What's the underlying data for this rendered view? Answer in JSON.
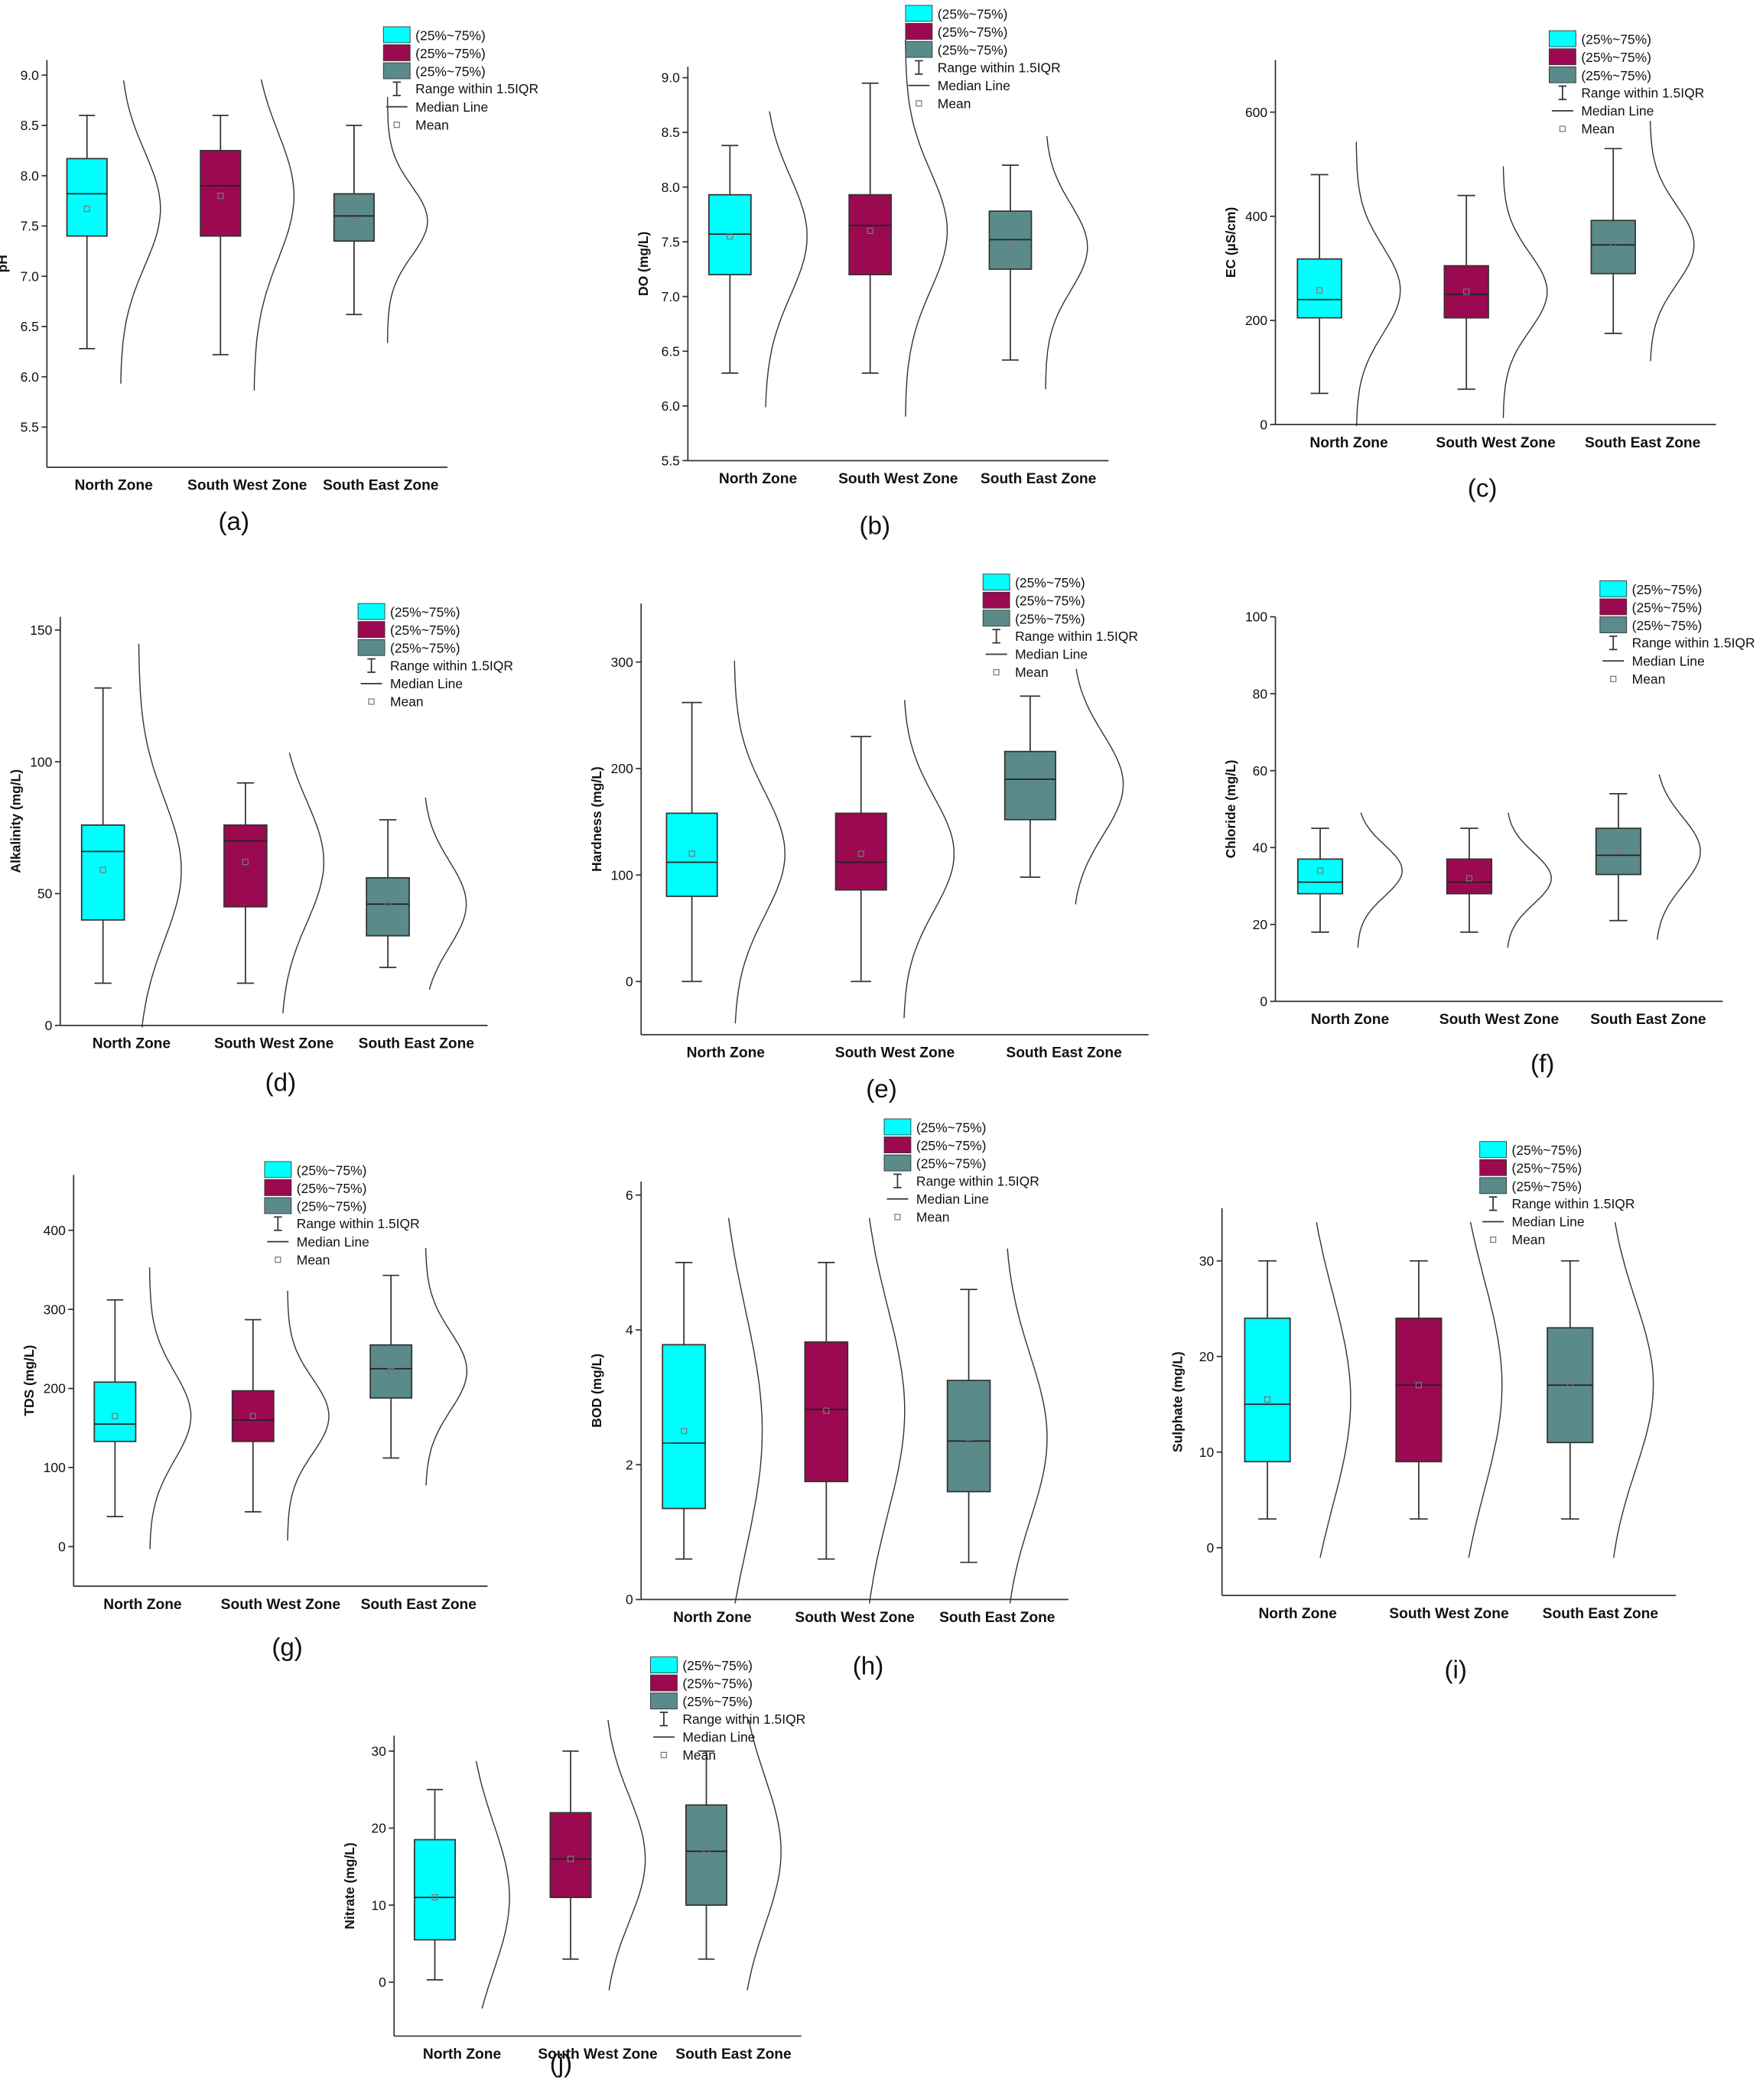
{
  "chart_data": [
    {
      "type": "box",
      "caption": "(a)",
      "y_label": "pH",
      "categories": [
        "North Zone",
        "South West Zone",
        "South East Zone"
      ],
      "ylim": [
        5.1,
        9.15
      ],
      "yticks": [
        {
          "value": 5.5,
          "label": "5.5"
        },
        {
          "value": 6,
          "label": "6.0"
        },
        {
          "value": 6.5,
          "label": "6.5"
        },
        {
          "value": 7,
          "label": "7.0"
        },
        {
          "value": 7.5,
          "label": "7.5"
        },
        {
          "value": 8,
          "label": "8.0"
        },
        {
          "value": 8.5,
          "label": "8.5"
        },
        {
          "value": 9,
          "label": "9.0"
        }
      ],
      "boxes": [
        {
          "name": "(25%~75%)",
          "color": "#00ffff",
          "low": 6.28,
          "q1": 7.4,
          "median": 7.82,
          "q3": 8.17,
          "high": 8.6,
          "mean": 7.67
        },
        {
          "name": "(25%~75%)",
          "color": "#9b0a50",
          "low": 6.22,
          "q1": 7.4,
          "median": 7.9,
          "q3": 8.25,
          "high": 8.6,
          "mean": 7.8
        },
        {
          "name": "(25%~75%)",
          "color": "#5b8a8a",
          "low": 6.62,
          "q1": 7.35,
          "median": 7.6,
          "q3": 7.82,
          "high": 8.5,
          "mean": 7.55
        }
      ],
      "legend_extra": [
        "Range within 1.5IQR",
        "Median Line",
        "Mean"
      ]
    },
    {
      "type": "box",
      "caption": "(b)",
      "y_label": "DO (mg/L)",
      "categories": [
        "North Zone",
        "South West Zone",
        "South East Zone"
      ],
      "ylim": [
        5.5,
        9.1
      ],
      "yticks": [
        {
          "value": 5.5,
          "label": "5.5"
        },
        {
          "value": 6,
          "label": "6.0"
        },
        {
          "value": 6.5,
          "label": "6.5"
        },
        {
          "value": 7,
          "label": "7.0"
        },
        {
          "value": 7.5,
          "label": "7.5"
        },
        {
          "value": 8,
          "label": "8.0"
        },
        {
          "value": 8.5,
          "label": "8.5"
        },
        {
          "value": 9,
          "label": "9.0"
        }
      ],
      "boxes": [
        {
          "name": "(25%~75%)",
          "color": "#00ffff",
          "low": 6.3,
          "q1": 7.2,
          "median": 7.57,
          "q3": 7.93,
          "high": 8.38,
          "mean": 7.55
        },
        {
          "name": "(25%~75%)",
          "color": "#9b0a50",
          "low": 6.3,
          "q1": 7.2,
          "median": 7.65,
          "q3": 7.93,
          "high": 8.95,
          "mean": 7.6
        },
        {
          "name": "(25%~75%)",
          "color": "#5b8a8a",
          "low": 6.42,
          "q1": 7.25,
          "median": 7.52,
          "q3": 7.78,
          "high": 8.2,
          "mean": 7.45
        }
      ],
      "legend_extra": [
        "Range within 1.5IQR",
        "Median Line",
        "Mean"
      ]
    },
    {
      "type": "box",
      "caption": "(c)",
      "y_label": "EC (µS/cm)",
      "categories": [
        "North Zone",
        "South West Zone",
        "South East Zone"
      ],
      "ylim": [
        0,
        700
      ],
      "yticks": [
        0,
        200,
        400,
        600
      ],
      "boxes": [
        {
          "name": "(25%~75%)",
          "color": "#00ffff",
          "low": 60,
          "q1": 205,
          "median": 240,
          "q3": 318,
          "high": 480,
          "mean": 258
        },
        {
          "name": "(25%~75%)",
          "color": "#9b0a50",
          "low": 68,
          "q1": 205,
          "median": 250,
          "q3": 305,
          "high": 440,
          "mean": 255
        },
        {
          "name": "(25%~75%)",
          "color": "#5b8a8a",
          "low": 175,
          "q1": 290,
          "median": 345,
          "q3": 392,
          "high": 530,
          "mean": 345
        }
      ],
      "legend_extra": [
        "Range within 1.5IQR",
        "Median Line",
        "Mean"
      ]
    },
    {
      "type": "box",
      "caption": "(d)",
      "y_label": "Alkalinity (mg/L)",
      "categories": [
        "North Zone",
        "South West Zone",
        "South East Zone"
      ],
      "ylim": [
        0,
        155
      ],
      "yticks": [
        0,
        50,
        100,
        150
      ],
      "boxes": [
        {
          "name": "(25%~75%)",
          "color": "#00ffff",
          "low": 16,
          "q1": 40,
          "median": 66,
          "q3": 76,
          "high": 128,
          "mean": 59
        },
        {
          "name": "(25%~75%)",
          "color": "#9b0a50",
          "low": 16,
          "q1": 45,
          "median": 70,
          "q3": 76,
          "high": 92,
          "mean": 62
        },
        {
          "name": "(25%~75%)",
          "color": "#5b8a8a",
          "low": 22,
          "q1": 34,
          "median": 46,
          "q3": 56,
          "high": 78,
          "mean": 46
        }
      ],
      "legend_extra": [
        "Range within 1.5IQR",
        "Median Line",
        "Mean"
      ]
    },
    {
      "type": "box",
      "caption": "(e)",
      "y_label": "Hardness (mg/L)",
      "categories": [
        "North Zone",
        "South West Zone",
        "South East Zone"
      ],
      "ylim": [
        -50,
        355
      ],
      "yticks": [
        0,
        100,
        200,
        300
      ],
      "boxes": [
        {
          "name": "(25%~75%)",
          "color": "#00ffff",
          "low": 0,
          "q1": 80,
          "median": 112,
          "q3": 158,
          "high": 262,
          "mean": 120
        },
        {
          "name": "(25%~75%)",
          "color": "#9b0a50",
          "low": 0,
          "q1": 86,
          "median": 112,
          "q3": 158,
          "high": 230,
          "mean": 120
        },
        {
          "name": "(25%~75%)",
          "color": "#5b8a8a",
          "low": 98,
          "q1": 152,
          "median": 190,
          "q3": 216,
          "high": 268,
          "mean": 185
        }
      ],
      "legend_extra": [
        "Range within 1.5IQR",
        "Median Line",
        "Mean"
      ]
    },
    {
      "type": "box",
      "caption": "(f)",
      "y_label": "Chloride (mg/L)",
      "categories": [
        "North Zone",
        "South West Zone",
        "South East Zone"
      ],
      "ylim": [
        0,
        100
      ],
      "yticks": [
        0,
        20,
        40,
        60,
        80,
        100
      ],
      "boxes": [
        {
          "name": "(25%~75%)",
          "color": "#00ffff",
          "low": 18,
          "q1": 28,
          "median": 31,
          "q3": 37,
          "high": 45,
          "mean": 34
        },
        {
          "name": "(25%~75%)",
          "color": "#9b0a50",
          "low": 18,
          "q1": 28,
          "median": 31,
          "q3": 37,
          "high": 45,
          "mean": 32
        },
        {
          "name": "(25%~75%)",
          "color": "#5b8a8a",
          "low": 21,
          "q1": 33,
          "median": 38,
          "q3": 45,
          "high": 54,
          "mean": 39
        }
      ],
      "legend_extra": [
        "Range within 1.5IQR",
        "Median Line",
        "Mean"
      ]
    },
    {
      "type": "box",
      "caption": "(g)",
      "y_label": "TDS (mg/L)",
      "categories": [
        "North Zone",
        "South West Zone",
        "South East Zone"
      ],
      "ylim": [
        -50,
        470
      ],
      "yticks": [
        0,
        100,
        200,
        300,
        400
      ],
      "boxes": [
        {
          "name": "(25%~75%)",
          "color": "#00ffff",
          "low": 38,
          "q1": 133,
          "median": 155,
          "q3": 208,
          "high": 312,
          "mean": 165
        },
        {
          "name": "(25%~75%)",
          "color": "#9b0a50",
          "low": 44,
          "q1": 133,
          "median": 160,
          "q3": 197,
          "high": 287,
          "mean": 165
        },
        {
          "name": "(25%~75%)",
          "color": "#5b8a8a",
          "low": 112,
          "q1": 188,
          "median": 225,
          "q3": 255,
          "high": 343,
          "mean": 222
        }
      ],
      "legend_extra": [
        "Range within 1.5IQR",
        "Median Line",
        "Mean"
      ]
    },
    {
      "type": "box",
      "caption": "(h)",
      "y_label": "BOD (mg/L)",
      "categories": [
        "North Zone",
        "South West Zone",
        "South East Zone"
      ],
      "ylim": [
        0,
        6.2
      ],
      "yticks": [
        0,
        2,
        4,
        6
      ],
      "boxes": [
        {
          "name": "(25%~75%)",
          "color": "#00ffff",
          "low": 0.6,
          "q1": 1.35,
          "median": 2.32,
          "q3": 3.78,
          "high": 5,
          "mean": 2.5
        },
        {
          "name": "(25%~75%)",
          "color": "#9b0a50",
          "low": 0.6,
          "q1": 1.75,
          "median": 2.82,
          "q3": 3.82,
          "high": 5,
          "mean": 2.8
        },
        {
          "name": "(25%~75%)",
          "color": "#5b8a8a",
          "low": 0.55,
          "q1": 1.6,
          "median": 2.35,
          "q3": 3.25,
          "high": 4.6,
          "mean": 2.4
        }
      ],
      "legend_extra": [
        "Range within 1.5IQR",
        "Median Line",
        "Mean"
      ]
    },
    {
      "type": "box",
      "caption": "(i)",
      "y_label": "Sulphate (mg/L)",
      "categories": [
        "North Zone",
        "South West Zone",
        "South East Zone"
      ],
      "ylim": [
        -5,
        35.5
      ],
      "yticks": [
        0,
        10,
        20,
        30
      ],
      "boxes": [
        {
          "name": "(25%~75%)",
          "color": "#00ffff",
          "low": 3,
          "q1": 9,
          "median": 15,
          "q3": 24,
          "high": 30,
          "mean": 15.5
        },
        {
          "name": "(25%~75%)",
          "color": "#9b0a50",
          "low": 3,
          "q1": 9,
          "median": 17,
          "q3": 24,
          "high": 30,
          "mean": 17
        },
        {
          "name": "(25%~75%)",
          "color": "#5b8a8a",
          "low": 3,
          "q1": 11,
          "median": 17,
          "q3": 23,
          "high": 30,
          "mean": 17
        }
      ],
      "legend_extra": [
        "Range within 1.5IQR",
        "Median Line",
        "Mean"
      ]
    },
    {
      "type": "box",
      "caption": "(j)",
      "y_label": "Nitrate (mg/L)",
      "categories": [
        "North Zone",
        "South West Zone",
        "South East Zone"
      ],
      "ylim": [
        -7,
        32
      ],
      "yticks": [
        0,
        10,
        20,
        30
      ],
      "boxes": [
        {
          "name": "(25%~75%)",
          "color": "#00ffff",
          "low": 0.3,
          "q1": 5.5,
          "median": 11,
          "q3": 18.5,
          "high": 25,
          "mean": 11
        },
        {
          "name": "(25%~75%)",
          "color": "#9b0a50",
          "low": 3,
          "q1": 11,
          "median": 16,
          "q3": 22,
          "high": 30,
          "mean": 16
        },
        {
          "name": "(25%~75%)",
          "color": "#5b8a8a",
          "low": 3,
          "q1": 10,
          "median": 17,
          "q3": 23,
          "high": 30,
          "mean": 17
        }
      ],
      "legend_extra": [
        "Range within 1.5IQR",
        "Median Line",
        "Mean"
      ]
    }
  ]
}
